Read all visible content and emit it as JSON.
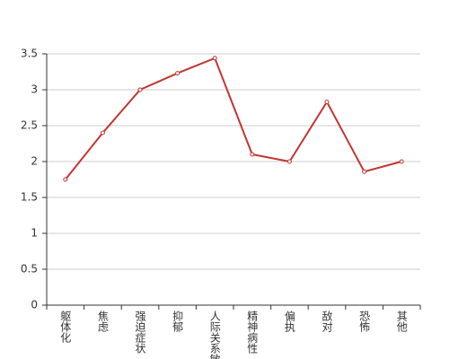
{
  "chart_data": {
    "type": "line",
    "categories": [
      "躯体化",
      "焦虑",
      "强迫症状",
      "抑郁",
      "人际关系敏感",
      "精神病性",
      "偏执",
      "敌对",
      "恐怖",
      "其他"
    ],
    "values": [
      1.75,
      2.4,
      3.0,
      3.23,
      3.44,
      2.1,
      2.0,
      2.83,
      1.86,
      2.0
    ],
    "color": "#c23531",
    "ylim": [
      0,
      3.5
    ],
    "yticks": [
      0,
      0.5,
      1,
      1.5,
      2,
      2.5,
      3,
      3.5
    ],
    "grid": true
  }
}
